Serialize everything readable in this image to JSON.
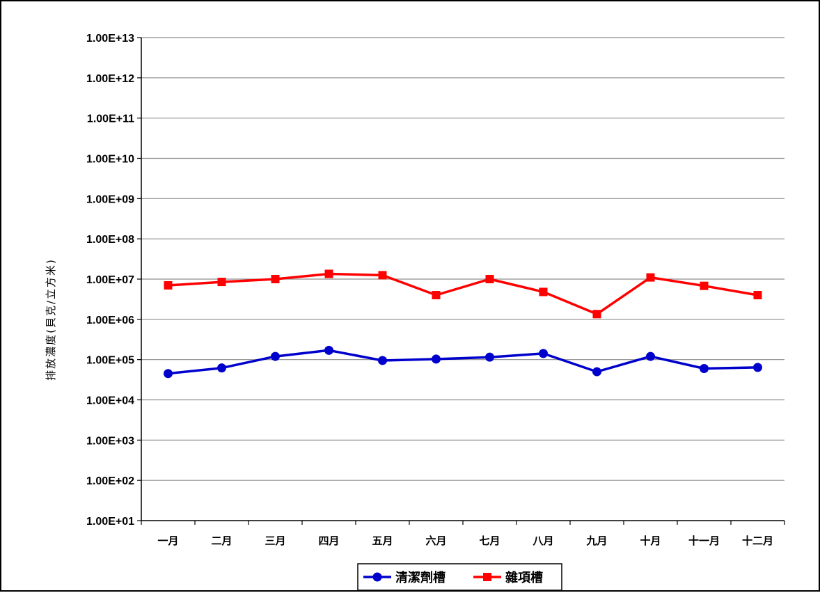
{
  "chart_data": {
    "type": "line",
    "title": "",
    "xlabel": "",
    "ylabel": "排放濃度(貝克/立方米)",
    "yscale": "log",
    "ylim": [
      10.0,
      10000000000000.0
    ],
    "grid": true,
    "legend_position": "bottom",
    "categories": [
      "一月",
      "二月",
      "三月",
      "四月",
      "五月",
      "六月",
      "七月",
      "八月",
      "九月",
      "十月",
      "十一月",
      "十二月"
    ],
    "ytick_labels": [
      "1.00E+01",
      "1.00E+02",
      "1.00E+03",
      "1.00E+04",
      "1.00E+05",
      "1.00E+06",
      "1.00E+07",
      "1.00E+08",
      "1.00E+09",
      "1.00E+10",
      "1.00E+11",
      "1.00E+12",
      "1.00E+13"
    ],
    "series": [
      {
        "name": "清潔劑槽",
        "color": "#0000cc",
        "marker": "circle",
        "values": [
          45000,
          62000,
          120000,
          170000,
          95000,
          103000,
          115000,
          142000,
          50000,
          120000,
          60000,
          64000
        ]
      },
      {
        "name": "雜項槽",
        "color": "#ff0000",
        "marker": "square",
        "values": [
          7000000,
          8500000,
          10000000,
          13500000,
          12500000,
          4000000,
          10000000,
          4800000,
          1350000,
          11000000,
          6800000,
          4000000
        ]
      }
    ]
  }
}
